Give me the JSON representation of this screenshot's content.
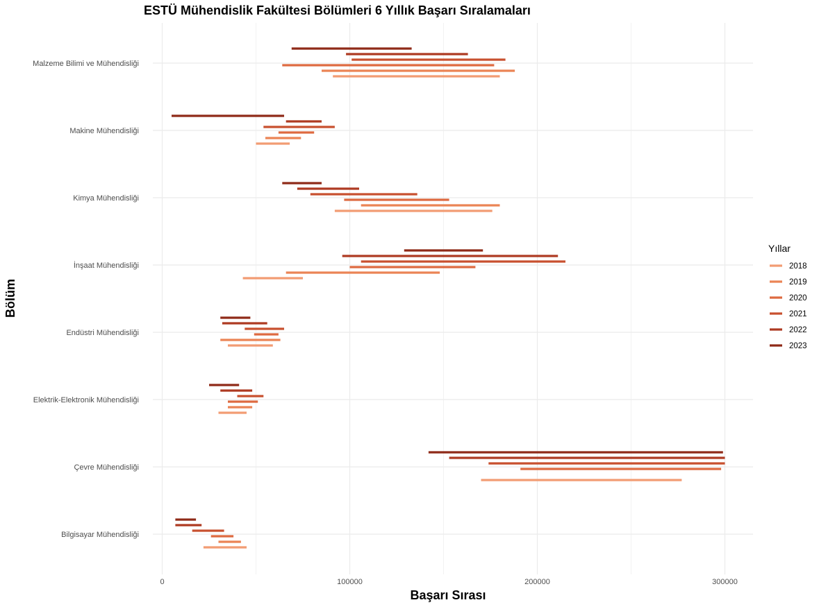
{
  "chart_data": {
    "type": "range-bar",
    "title": "ESTÜ Mühendislik Fakültesi Bölümleri 6 Yıllık Başarı Sıralamaları",
    "xlabel": "Başarı Sırası",
    "ylabel": "Bölüm",
    "xlim": [
      -5000,
      315000
    ],
    "x_ticks": [
      0,
      100000,
      200000,
      300000
    ],
    "x_tick_labels": [
      "0",
      "100000",
      "200000",
      "300000"
    ],
    "grid": true,
    "legend": {
      "title": "Yıllar",
      "placement": "right",
      "items": [
        {
          "label": "2018",
          "color": "#F29C73"
        },
        {
          "label": "2019",
          "color": "#EB8455"
        },
        {
          "label": "2020",
          "color": "#DE6A40"
        },
        {
          "label": "2021",
          "color": "#C8502F"
        },
        {
          "label": "2022",
          "color": "#AE3A22"
        },
        {
          "label": "2023",
          "color": "#8F2A18"
        }
      ]
    },
    "categories": [
      "Malzeme Bilimi ve Mühendisliği",
      "Makine Mühendisliği",
      "Kimya Mühendisliği",
      "İnşaat Mühendisliği",
      "Endüstri Mühendisliği",
      "Elektrik-Elektronik Mühendisliği",
      "Çevre Mühendisliği",
      "Bilgisayar Mühendisliği"
    ],
    "segments": [
      {
        "category": "Malzeme Bilimi ve Mühendisliği",
        "year": "2023",
        "start": 69000,
        "end": 133000
      },
      {
        "category": "Malzeme Bilimi ve Mühendisliği",
        "year": "2022",
        "start": 98000,
        "end": 163000
      },
      {
        "category": "Malzeme Bilimi ve Mühendisliği",
        "year": "2021",
        "start": 101000,
        "end": 183000
      },
      {
        "category": "Malzeme Bilimi ve Mühendisliği",
        "year": "2020",
        "start": 64000,
        "end": 177000
      },
      {
        "category": "Malzeme Bilimi ve Mühendisliği",
        "year": "2019",
        "start": 85000,
        "end": 188000
      },
      {
        "category": "Malzeme Bilimi ve Mühendisliği",
        "year": "2018",
        "start": 91000,
        "end": 180000
      },
      {
        "category": "Makine Mühendisliği",
        "year": "2023",
        "start": 5000,
        "end": 65000
      },
      {
        "category": "Makine Mühendisliği",
        "year": "2022",
        "start": 66000,
        "end": 85000
      },
      {
        "category": "Makine Mühendisliği",
        "year": "2021",
        "start": 54000,
        "end": 92000
      },
      {
        "category": "Makine Mühendisliği",
        "year": "2020",
        "start": 62000,
        "end": 81000
      },
      {
        "category": "Makine Mühendisliği",
        "year": "2019",
        "start": 55000,
        "end": 74000
      },
      {
        "category": "Makine Mühendisliği",
        "year": "2018",
        "start": 50000,
        "end": 68000
      },
      {
        "category": "Kimya Mühendisliği",
        "year": "2023",
        "start": 64000,
        "end": 85000
      },
      {
        "category": "Kimya Mühendisliği",
        "year": "2022",
        "start": 72000,
        "end": 105000
      },
      {
        "category": "Kimya Mühendisliği",
        "year": "2021",
        "start": 79000,
        "end": 136000
      },
      {
        "category": "Kimya Mühendisliği",
        "year": "2020",
        "start": 97000,
        "end": 153000
      },
      {
        "category": "Kimya Mühendisliği",
        "year": "2019",
        "start": 106000,
        "end": 180000
      },
      {
        "category": "Kimya Mühendisliği",
        "year": "2018",
        "start": 92000,
        "end": 176000
      },
      {
        "category": "İnşaat Mühendisliği",
        "year": "2023",
        "start": 129000,
        "end": 171000
      },
      {
        "category": "İnşaat Mühendisliği",
        "year": "2022",
        "start": 96000,
        "end": 211000
      },
      {
        "category": "İnşaat Mühendisliği",
        "year": "2021",
        "start": 106000,
        "end": 215000
      },
      {
        "category": "İnşaat Mühendisliği",
        "year": "2020",
        "start": 100000,
        "end": 167000
      },
      {
        "category": "İnşaat Mühendisliği",
        "year": "2019",
        "start": 66000,
        "end": 148000
      },
      {
        "category": "İnşaat Mühendisliği",
        "year": "2018",
        "start": 43000,
        "end": 75000
      },
      {
        "category": "Endüstri Mühendisliği",
        "year": "2023",
        "start": 31000,
        "end": 47000
      },
      {
        "category": "Endüstri Mühendisliği",
        "year": "2022",
        "start": 32000,
        "end": 56000
      },
      {
        "category": "Endüstri Mühendisliği",
        "year": "2021",
        "start": 44000,
        "end": 65000
      },
      {
        "category": "Endüstri Mühendisliği",
        "year": "2020",
        "start": 49000,
        "end": 62000
      },
      {
        "category": "Endüstri Mühendisliği",
        "year": "2019",
        "start": 31000,
        "end": 63000
      },
      {
        "category": "Endüstri Mühendisliği",
        "year": "2018",
        "start": 35000,
        "end": 59000
      },
      {
        "category": "Elektrik-Elektronik Mühendisliği",
        "year": "2023",
        "start": 25000,
        "end": 41000
      },
      {
        "category": "Elektrik-Elektronik Mühendisliği",
        "year": "2022",
        "start": 31000,
        "end": 48000
      },
      {
        "category": "Elektrik-Elektronik Mühendisliği",
        "year": "2021",
        "start": 40000,
        "end": 54000
      },
      {
        "category": "Elektrik-Elektronik Mühendisliği",
        "year": "2020",
        "start": 35000,
        "end": 51000
      },
      {
        "category": "Elektrik-Elektronik Mühendisliği",
        "year": "2019",
        "start": 35000,
        "end": 48000
      },
      {
        "category": "Elektrik-Elektronik Mühendisliği",
        "year": "2018",
        "start": 30000,
        "end": 45000
      },
      {
        "category": "Çevre Mühendisliği",
        "year": "2023",
        "start": 142000,
        "end": 299000
      },
      {
        "category": "Çevre Mühendisliği",
        "year": "2022",
        "start": 153000,
        "end": 300000
      },
      {
        "category": "Çevre Mühendisliği",
        "year": "2021",
        "start": 174000,
        "end": 300000
      },
      {
        "category": "Çevre Mühendisliği",
        "year": "2020",
        "start": 191000,
        "end": 298000
      },
      {
        "category": "Çevre Mühendisliği",
        "year": "2018",
        "start": 170000,
        "end": 277000
      },
      {
        "category": "Bilgisayar Mühendisliği",
        "year": "2023",
        "start": 7000,
        "end": 18000
      },
      {
        "category": "Bilgisayar Mühendisliği",
        "year": "2022",
        "start": 7000,
        "end": 21000
      },
      {
        "category": "Bilgisayar Mühendisliği",
        "year": "2021",
        "start": 16000,
        "end": 33000
      },
      {
        "category": "Bilgisayar Mühendisliği",
        "year": "2020",
        "start": 26000,
        "end": 38000
      },
      {
        "category": "Bilgisayar Mühendisliği",
        "year": "2019",
        "start": 30000,
        "end": 42000
      },
      {
        "category": "Bilgisayar Mühendisliği",
        "year": "2018",
        "start": 22000,
        "end": 45000
      }
    ]
  }
}
